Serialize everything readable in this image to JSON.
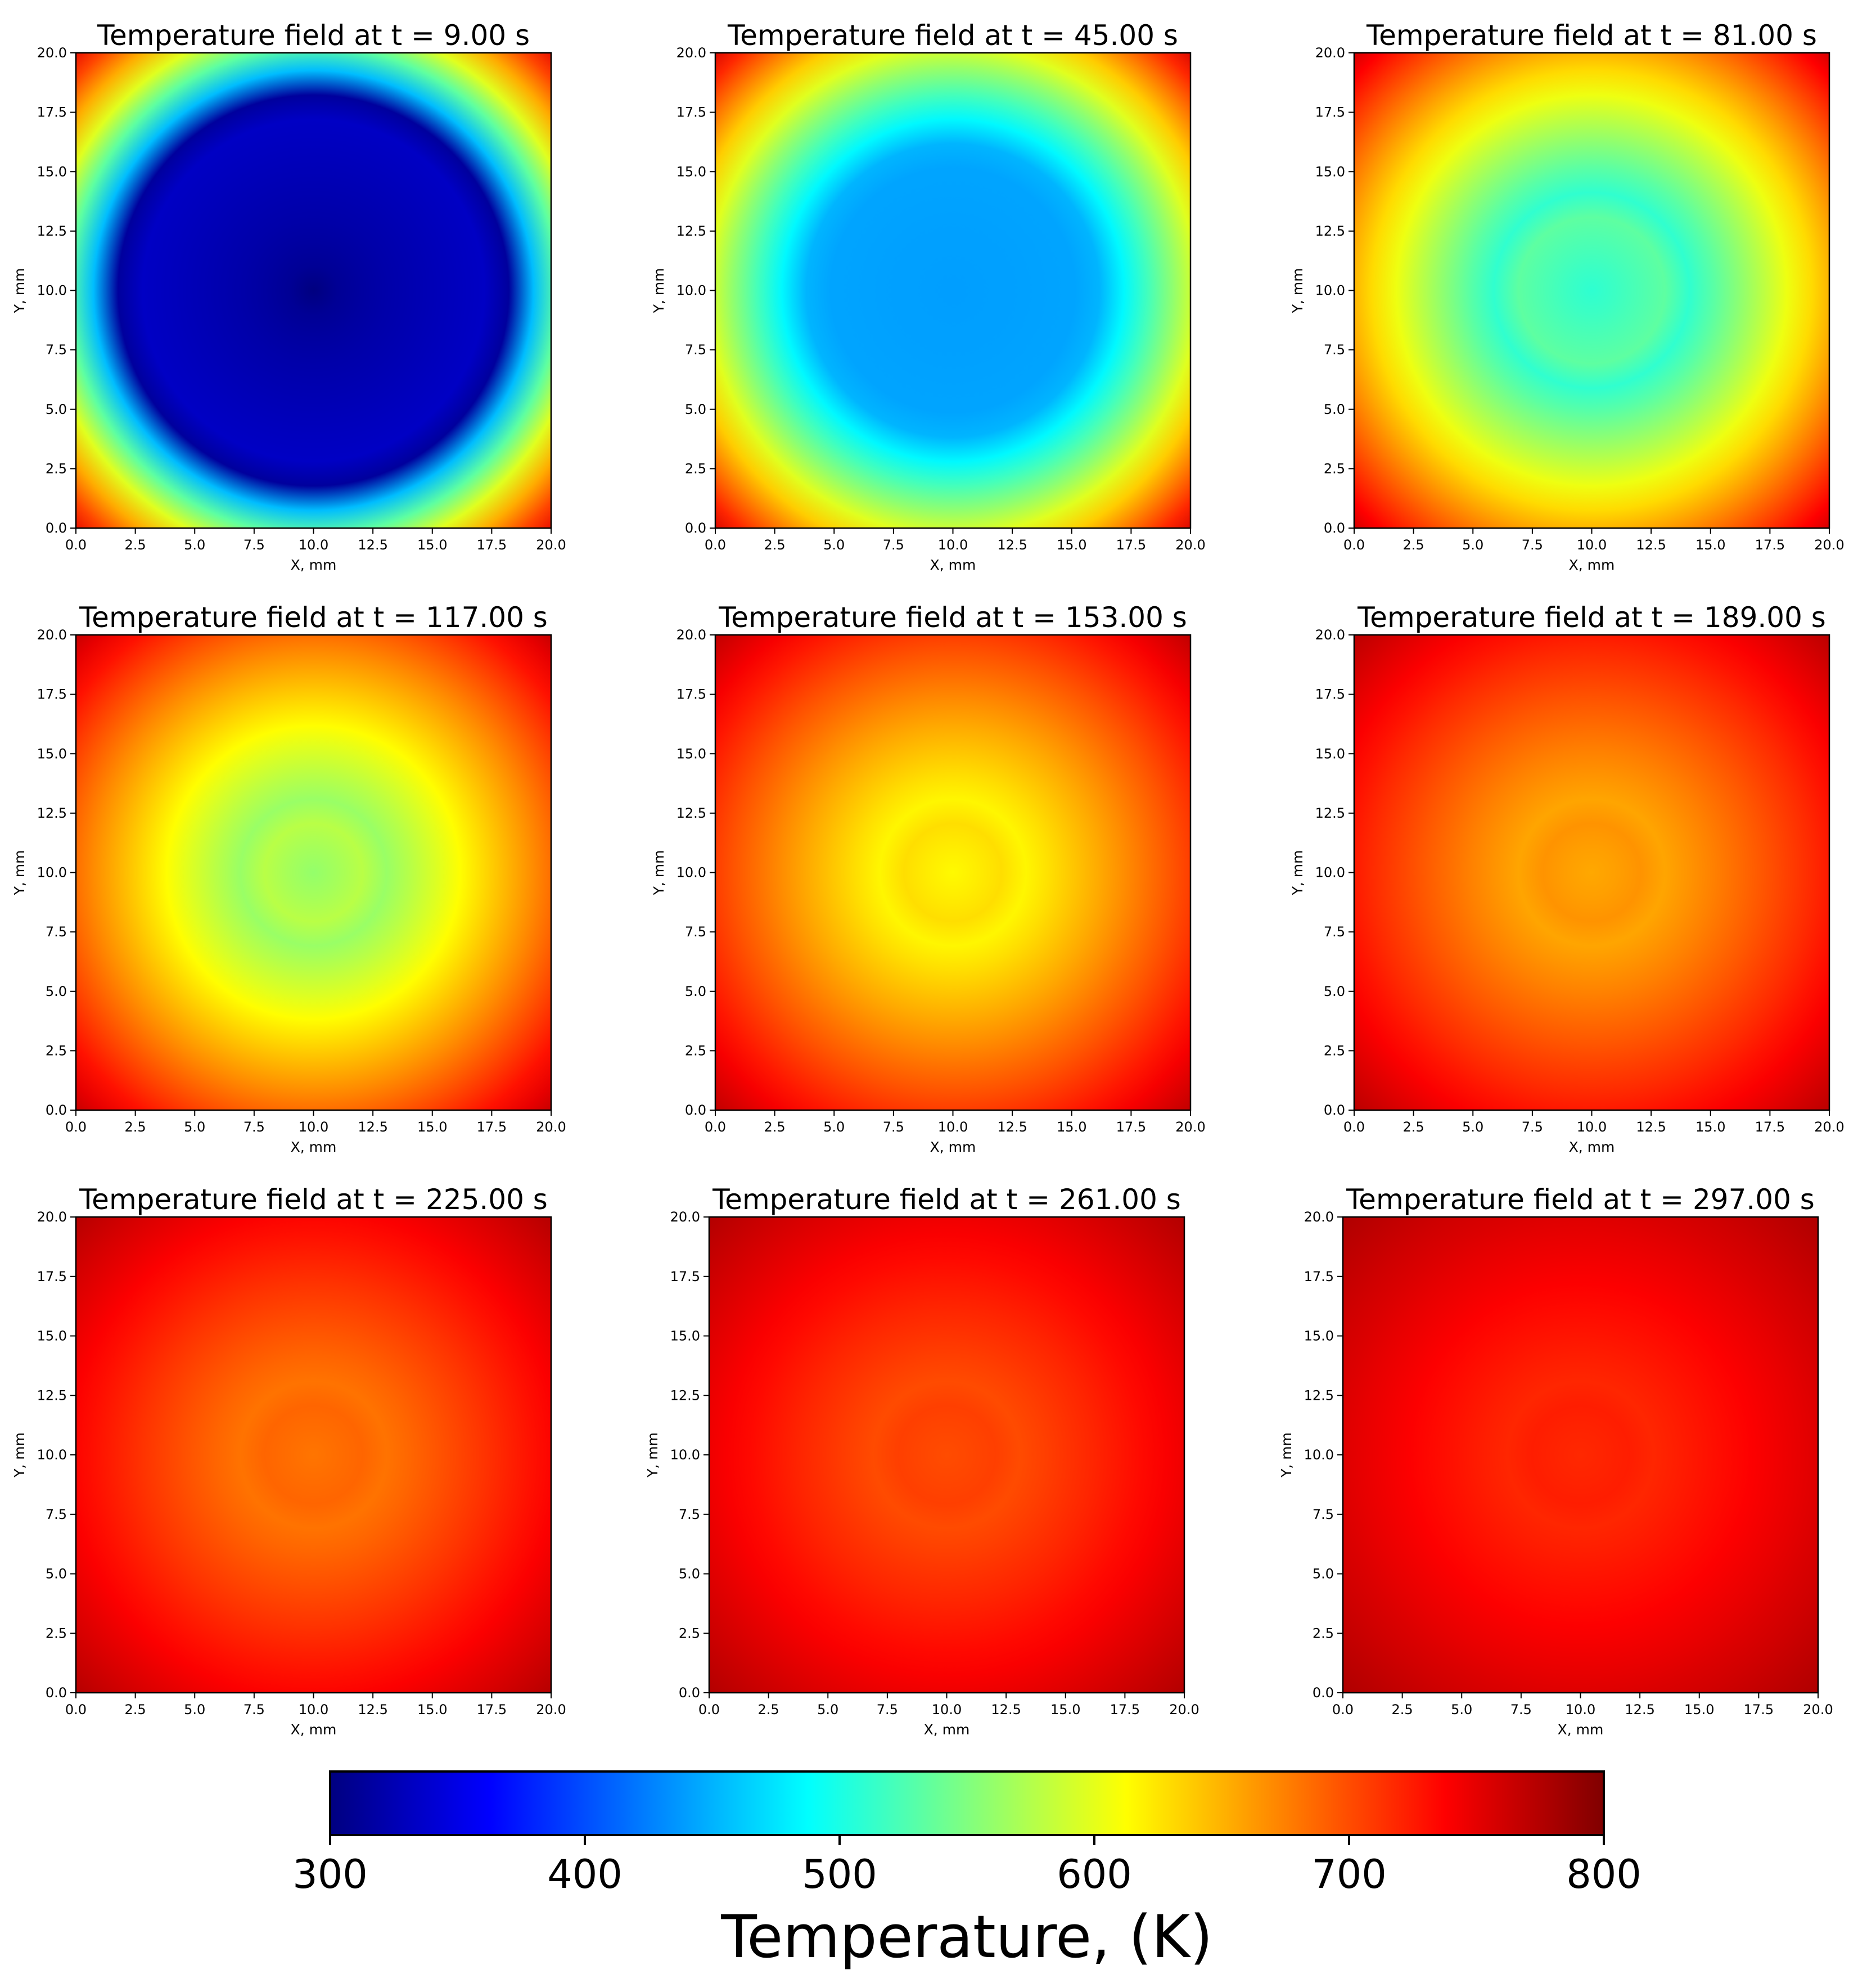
{
  "figure": {
    "colormap": "jet",
    "colorbar": {
      "label": "Temperature, (K)",
      "range": [
        300,
        800
      ],
      "ticks": [
        "300",
        "400",
        "500",
        "600",
        "700",
        "800"
      ]
    }
  },
  "chart_data": [
    {
      "type": "heatmap",
      "title": "Temperature field at t = 9.00 s",
      "time_s": 9,
      "center_value": 300,
      "edge_value": 750,
      "boundary_layer_frac": 0.13,
      "xlabel": "X, mm",
      "ylabel": "Y, mm",
      "xlim": [
        0,
        20
      ],
      "ylim": [
        0,
        20
      ],
      "x_ticks": [
        "0.0",
        "2.5",
        "5.0",
        "7.5",
        "10.0",
        "12.5",
        "15.0",
        "17.5",
        "20.0"
      ],
      "y_ticks": [
        "0.0",
        "2.5",
        "5.0",
        "7.5",
        "10.0",
        "12.5",
        "15.0",
        "17.5",
        "20.0"
      ]
    },
    {
      "type": "heatmap",
      "title": "Temperature field at t = 45.00 s",
      "time_s": 45,
      "center_value": 440,
      "edge_value": 760,
      "boundary_layer_frac": 0.3,
      "xlabel": "X, mm",
      "ylabel": "Y, mm",
      "xlim": [
        0,
        20
      ],
      "ylim": [
        0,
        20
      ],
      "x_ticks": [
        "0.0",
        "2.5",
        "5.0",
        "7.5",
        "10.0",
        "12.5",
        "15.0",
        "17.5",
        "20.0"
      ],
      "y_ticks": [
        "0.0",
        "2.5",
        "5.0",
        "7.5",
        "10.0",
        "12.5",
        "15.0",
        "17.5",
        "20.0"
      ]
    },
    {
      "type": "heatmap",
      "title": "Temperature field at t = 81.00 s",
      "time_s": 81,
      "center_value": 510,
      "edge_value": 765,
      "boundary_layer_frac": 0.42,
      "xlabel": "X, mm",
      "ylabel": "Y, mm",
      "xlim": [
        0,
        20
      ],
      "ylim": [
        0,
        20
      ],
      "x_ticks": [
        "0.0",
        "2.5",
        "5.0",
        "7.5",
        "10.0",
        "12.5",
        "15.0",
        "17.5",
        "20.0"
      ],
      "y_ticks": [
        "0.0",
        "2.5",
        "5.0",
        "7.5",
        "10.0",
        "12.5",
        "15.0",
        "17.5",
        "20.0"
      ]
    },
    {
      "type": "heatmap",
      "title": "Temperature field at t = 117.00 s",
      "time_s": 117,
      "center_value": 560,
      "edge_value": 770,
      "boundary_layer_frac": 0.5,
      "xlabel": "X, mm",
      "ylabel": "Y, mm",
      "xlim": [
        0,
        20
      ],
      "ylim": [
        0,
        20
      ],
      "x_ticks": [
        "0.0",
        "2.5",
        "5.0",
        "7.5",
        "10.0",
        "12.5",
        "15.0",
        "17.5",
        "20.0"
      ],
      "y_ticks": [
        "0.0",
        "2.5",
        "5.0",
        "7.5",
        "10.0",
        "12.5",
        "15.0",
        "17.5",
        "20.0"
      ]
    },
    {
      "type": "heatmap",
      "title": "Temperature field at t = 153.00 s",
      "time_s": 153,
      "center_value": 615,
      "edge_value": 772,
      "boundary_layer_frac": 0.5,
      "xlabel": "X, mm",
      "ylabel": "Y, mm",
      "xlim": [
        0,
        20
      ],
      "ylim": [
        0,
        20
      ],
      "x_ticks": [
        "0.0",
        "2.5",
        "5.0",
        "7.5",
        "10.0",
        "12.5",
        "15.0",
        "17.5",
        "20.0"
      ],
      "y_ticks": [
        "0.0",
        "2.5",
        "5.0",
        "7.5",
        "10.0",
        "12.5",
        "15.0",
        "17.5",
        "20.0"
      ]
    },
    {
      "type": "heatmap",
      "title": "Temperature field at t = 189.00 s",
      "time_s": 189,
      "center_value": 655,
      "edge_value": 774,
      "boundary_layer_frac": 0.5,
      "xlabel": "X, mm",
      "ylabel": "Y, mm",
      "xlim": [
        0,
        20
      ],
      "ylim": [
        0,
        20
      ],
      "x_ticks": [
        "0.0",
        "2.5",
        "5.0",
        "7.5",
        "10.0",
        "12.5",
        "15.0",
        "17.5",
        "20.0"
      ],
      "y_ticks": [
        "0.0",
        "2.5",
        "5.0",
        "7.5",
        "10.0",
        "12.5",
        "15.0",
        "17.5",
        "20.0"
      ]
    },
    {
      "type": "heatmap",
      "title": "Temperature field at t = 225.00 s",
      "time_s": 225,
      "center_value": 680,
      "edge_value": 776,
      "boundary_layer_frac": 0.5,
      "xlabel": "X, mm",
      "ylabel": "Y, mm",
      "xlim": [
        0,
        20
      ],
      "ylim": [
        0,
        20
      ],
      "x_ticks": [
        "0.0",
        "2.5",
        "5.0",
        "7.5",
        "10.0",
        "12.5",
        "15.0",
        "17.5",
        "20.0"
      ],
      "y_ticks": [
        "0.0",
        "2.5",
        "5.0",
        "7.5",
        "10.0",
        "12.5",
        "15.0",
        "17.5",
        "20.0"
      ]
    },
    {
      "type": "heatmap",
      "title": "Temperature field at t = 261.00 s",
      "time_s": 261,
      "center_value": 700,
      "edge_value": 777,
      "boundary_layer_frac": 0.5,
      "xlabel": "X, mm",
      "ylabel": "Y, mm",
      "xlim": [
        0,
        20
      ],
      "ylim": [
        0,
        20
      ],
      "x_ticks": [
        "0.0",
        "2.5",
        "5.0",
        "7.5",
        "10.0",
        "12.5",
        "15.0",
        "17.5",
        "20.0"
      ],
      "y_ticks": [
        "0.0",
        "2.5",
        "5.0",
        "7.5",
        "10.0",
        "12.5",
        "15.0",
        "17.5",
        "20.0"
      ]
    },
    {
      "type": "heatmap",
      "title": "Temperature field at t = 297.00 s",
      "time_s": 297,
      "center_value": 718,
      "edge_value": 778,
      "boundary_layer_frac": 0.5,
      "xlabel": "X, mm",
      "ylabel": "Y, mm",
      "xlim": [
        0,
        20
      ],
      "ylim": [
        0,
        20
      ],
      "x_ticks": [
        "0.0",
        "2.5",
        "5.0",
        "7.5",
        "10.0",
        "12.5",
        "15.0",
        "17.5",
        "20.0"
      ],
      "y_ticks": [
        "0.0",
        "2.5",
        "5.0",
        "7.5",
        "10.0",
        "12.5",
        "15.0",
        "17.5",
        "20.0"
      ]
    }
  ]
}
